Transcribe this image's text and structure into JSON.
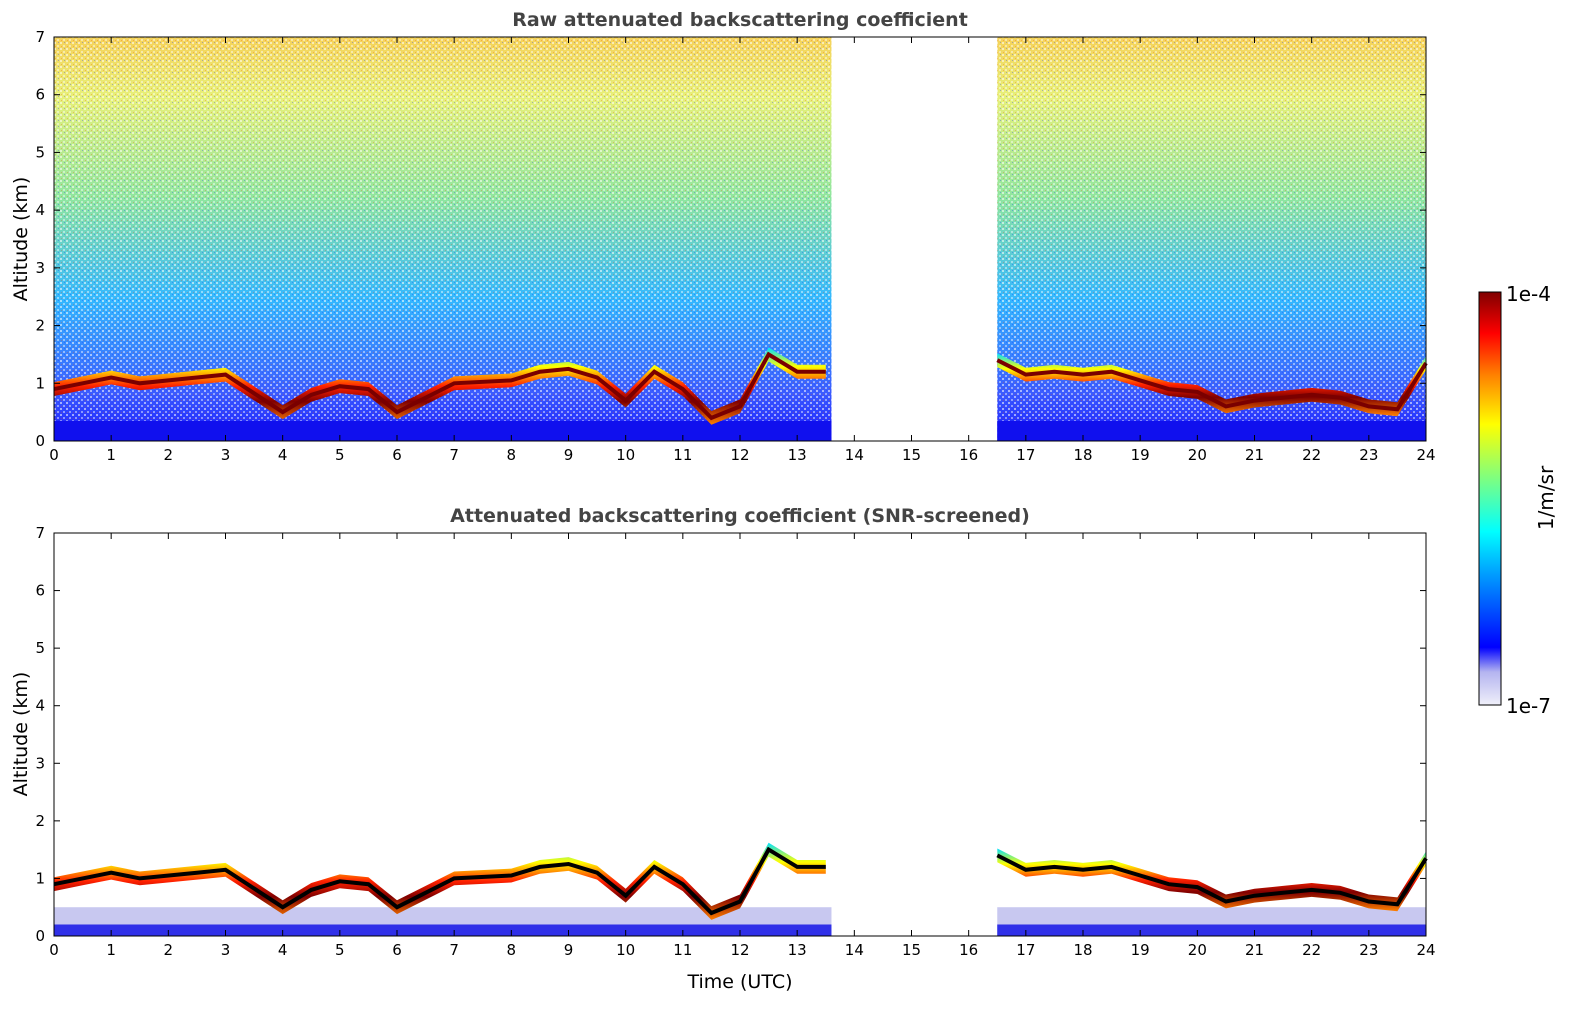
{
  "chart_data": [
    {
      "type": "heatmap",
      "title": "Raw attenuated backscattering coefficient",
      "xlabel": "",
      "ylabel": "Altitude (km)",
      "xlim": [
        0,
        24
      ],
      "ylim": [
        0,
        7
      ],
      "xticks": [
        "0",
        "1",
        "2",
        "3",
        "4",
        "5",
        "6",
        "7",
        "8",
        "9",
        "10",
        "11",
        "12",
        "13",
        "14",
        "15",
        "16",
        "17",
        "18",
        "19",
        "20",
        "21",
        "22",
        "23",
        "24"
      ],
      "yticks": [
        "0",
        "1",
        "2",
        "3",
        "4",
        "5",
        "6",
        "7"
      ],
      "data_gap_hours": [
        13.6,
        16.5
      ],
      "screened": false
    },
    {
      "type": "heatmap",
      "title": "Attenuated backscattering coefficient (SNR-screened)",
      "xlabel": "Time (UTC)",
      "ylabel": "Altitude (km)",
      "xlim": [
        0,
        24
      ],
      "ylim": [
        0,
        7
      ],
      "xticks": [
        "0",
        "1",
        "2",
        "3",
        "4",
        "5",
        "6",
        "7",
        "8",
        "9",
        "10",
        "11",
        "12",
        "13",
        "14",
        "15",
        "16",
        "17",
        "18",
        "19",
        "20",
        "21",
        "22",
        "23",
        "24"
      ],
      "yticks": [
        "0",
        "1",
        "2",
        "3",
        "4",
        "5",
        "6",
        "7"
      ],
      "data_gap_hours": [
        13.6,
        16.5
      ],
      "screened": true
    }
  ],
  "colorbar": {
    "label": "1/m/sr",
    "max_label": "1e-4",
    "min_label": "1e-7",
    "scale": "log",
    "range": [
      1e-07,
      0.0001
    ],
    "colors": [
      "#f0f0fa",
      "#0000ff",
      "#00a0ff",
      "#00ffff",
      "#7fff7f",
      "#ffff00",
      "#ff8000",
      "#ff0000",
      "#800000"
    ]
  },
  "cloud_layer_km": [
    [
      0.0,
      0.9
    ],
    [
      0.5,
      1.0
    ],
    [
      1.0,
      1.1
    ],
    [
      1.5,
      1.0
    ],
    [
      2.5,
      1.1
    ],
    [
      3.0,
      1.15
    ],
    [
      4.0,
      0.5
    ],
    [
      4.5,
      0.8
    ],
    [
      5.0,
      0.95
    ],
    [
      5.5,
      0.9
    ],
    [
      6.0,
      0.5
    ],
    [
      7.0,
      1.0
    ],
    [
      8.0,
      1.05
    ],
    [
      8.5,
      1.2
    ],
    [
      9.0,
      1.25
    ],
    [
      9.5,
      1.1
    ],
    [
      10.0,
      0.7
    ],
    [
      10.5,
      1.2
    ],
    [
      11.0,
      0.9
    ],
    [
      11.5,
      0.4
    ],
    [
      12.0,
      0.6
    ],
    [
      12.5,
      1.5
    ],
    [
      13.0,
      1.2
    ],
    [
      13.5,
      1.2
    ],
    [
      16.5,
      1.4
    ],
    [
      17.0,
      1.15
    ],
    [
      17.5,
      1.2
    ],
    [
      18.0,
      1.15
    ],
    [
      18.5,
      1.2
    ],
    [
      19.0,
      1.05
    ],
    [
      19.5,
      0.9
    ],
    [
      20.0,
      0.85
    ],
    [
      20.5,
      0.6
    ],
    [
      21.0,
      0.7
    ],
    [
      21.5,
      0.75
    ],
    [
      22.0,
      0.8
    ],
    [
      22.5,
      0.75
    ],
    [
      23.0,
      0.6
    ],
    [
      23.5,
      0.55
    ],
    [
      24.0,
      1.35
    ]
  ]
}
